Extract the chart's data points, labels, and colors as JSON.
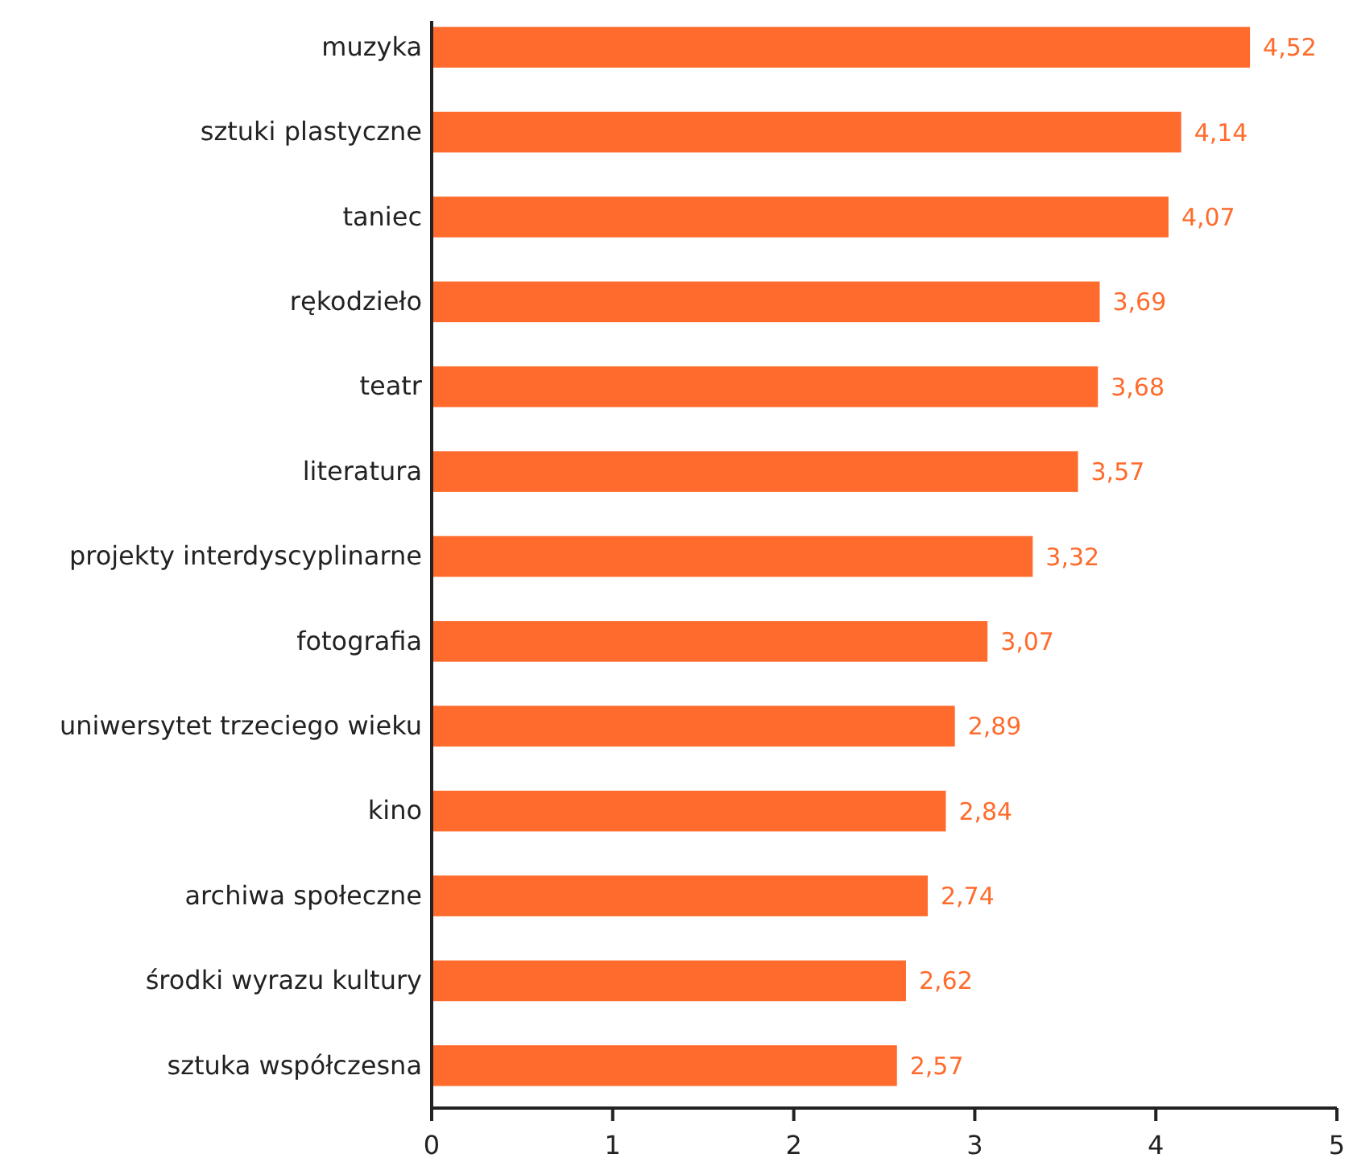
{
  "chart_data": {
    "type": "bar",
    "orientation": "horizontal",
    "categories": [
      "muzyka",
      "sztuki plastyczne",
      "taniec",
      "rękodzieło",
      "teatr",
      "literatura",
      "projekty interdyscyplinarne",
      "fotografia",
      "uniwersytet trzeciego wieku",
      "kino",
      "archiwa społeczne",
      "środki wyrazu kultury",
      "sztuka współczesna"
    ],
    "values": [
      4.52,
      4.14,
      4.07,
      3.69,
      3.68,
      3.57,
      3.32,
      3.07,
      2.89,
      2.84,
      2.74,
      2.62,
      2.57
    ],
    "value_labels": [
      "4,52",
      "4,14",
      "4,07",
      "3,69",
      "3,68",
      "3,57",
      "3,32",
      "3,07",
      "2,89",
      "2,84",
      "2,74",
      "2,62",
      "2,57"
    ],
    "color": "#ff6b2c",
    "xlim": [
      0,
      5
    ],
    "xticks": [
      0,
      1,
      2,
      3,
      4,
      5
    ],
    "grid": false
  }
}
